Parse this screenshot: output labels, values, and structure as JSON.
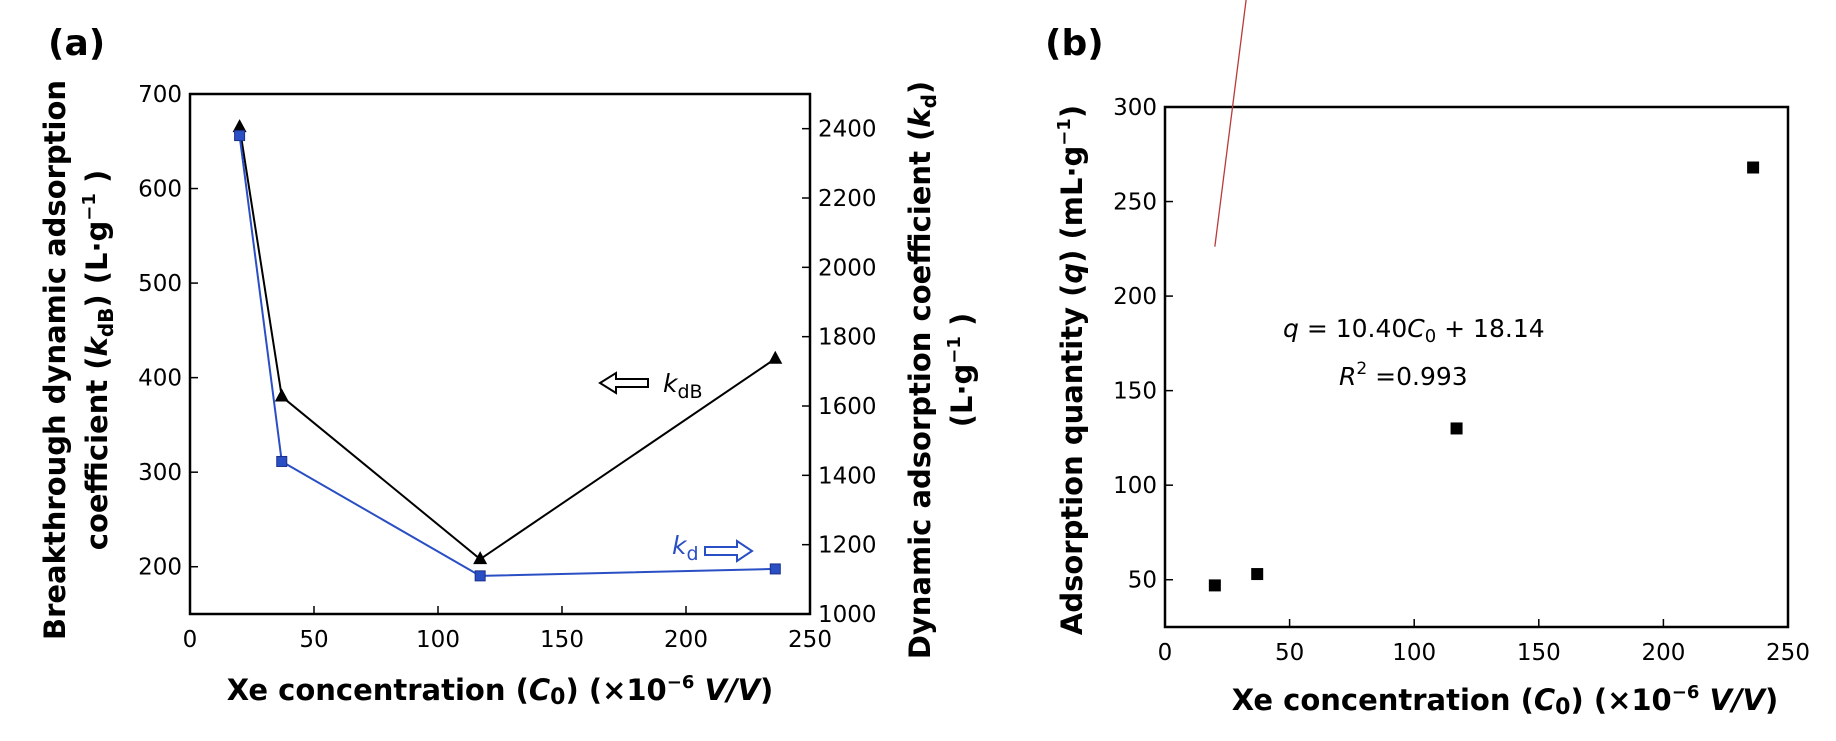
{
  "chart_data": [
    {
      "panel": "(a)",
      "type": "line",
      "x": [
        20,
        37,
        117,
        236
      ],
      "xlabel": "Xe concentration (C₀)  (×10⁻⁶ V/V)",
      "xlim": [
        0,
        250
      ],
      "xticks": [
        0,
        50,
        100,
        150,
        200,
        250
      ],
      "ylabel_left": "Breakthrough dynamic adsorption coefficient (kᵈᴮ) (L·g⁻¹)",
      "ylim_left": [
        150,
        700
      ],
      "yticks_left": [
        200,
        300,
        400,
        500,
        600,
        700
      ],
      "ylabel_right": "Dynamic adsorption coefficient (kᵈ) (L·g⁻¹)",
      "ylim_right": [
        1000,
        2500
      ],
      "yticks_right": [
        1000,
        1200,
        1400,
        1600,
        1800,
        2000,
        2200,
        2400
      ],
      "series": [
        {
          "name": "kdB",
          "axis": "left",
          "marker": "triangle",
          "color": "#000000",
          "values": [
            665,
            380,
            208,
            420
          ]
        },
        {
          "name": "kd",
          "axis": "right",
          "marker": "square",
          "color": "#2a4fc4",
          "values": [
            2380,
            1440,
            1110,
            1130
          ]
        }
      ],
      "annotations": [
        {
          "text_main": "k",
          "text_sub": "dB",
          "color": "#000000",
          "arrow": "left"
        },
        {
          "text_main": "k",
          "text_sub": "d",
          "color": "#2a4fc4",
          "arrow": "right"
        }
      ],
      "grid": false
    },
    {
      "panel": "(b)",
      "type": "scatter",
      "x": [
        20,
        37,
        117,
        236
      ],
      "values": [
        47,
        53,
        130,
        268
      ],
      "xlabel": "Xe concentration (C₀)  (×10⁻⁶ V/V)",
      "ylabel": "Adsorption quantity (q) (mL·g⁻¹)",
      "xlim": [
        0,
        250
      ],
      "xticks": [
        0,
        50,
        100,
        150,
        200,
        250
      ],
      "ylim": [
        25,
        300
      ],
      "yticks": [
        50,
        100,
        150,
        200,
        250,
        300
      ],
      "fit": {
        "slope": 10.4,
        "intercept": 18.14,
        "color": "#b83a3a",
        "x_range": [
          20,
          236
        ],
        "equation": "q = 10.40C₀ + 18.14",
        "r2": "R² =0.993"
      },
      "marker": "square",
      "grid": false
    }
  ]
}
